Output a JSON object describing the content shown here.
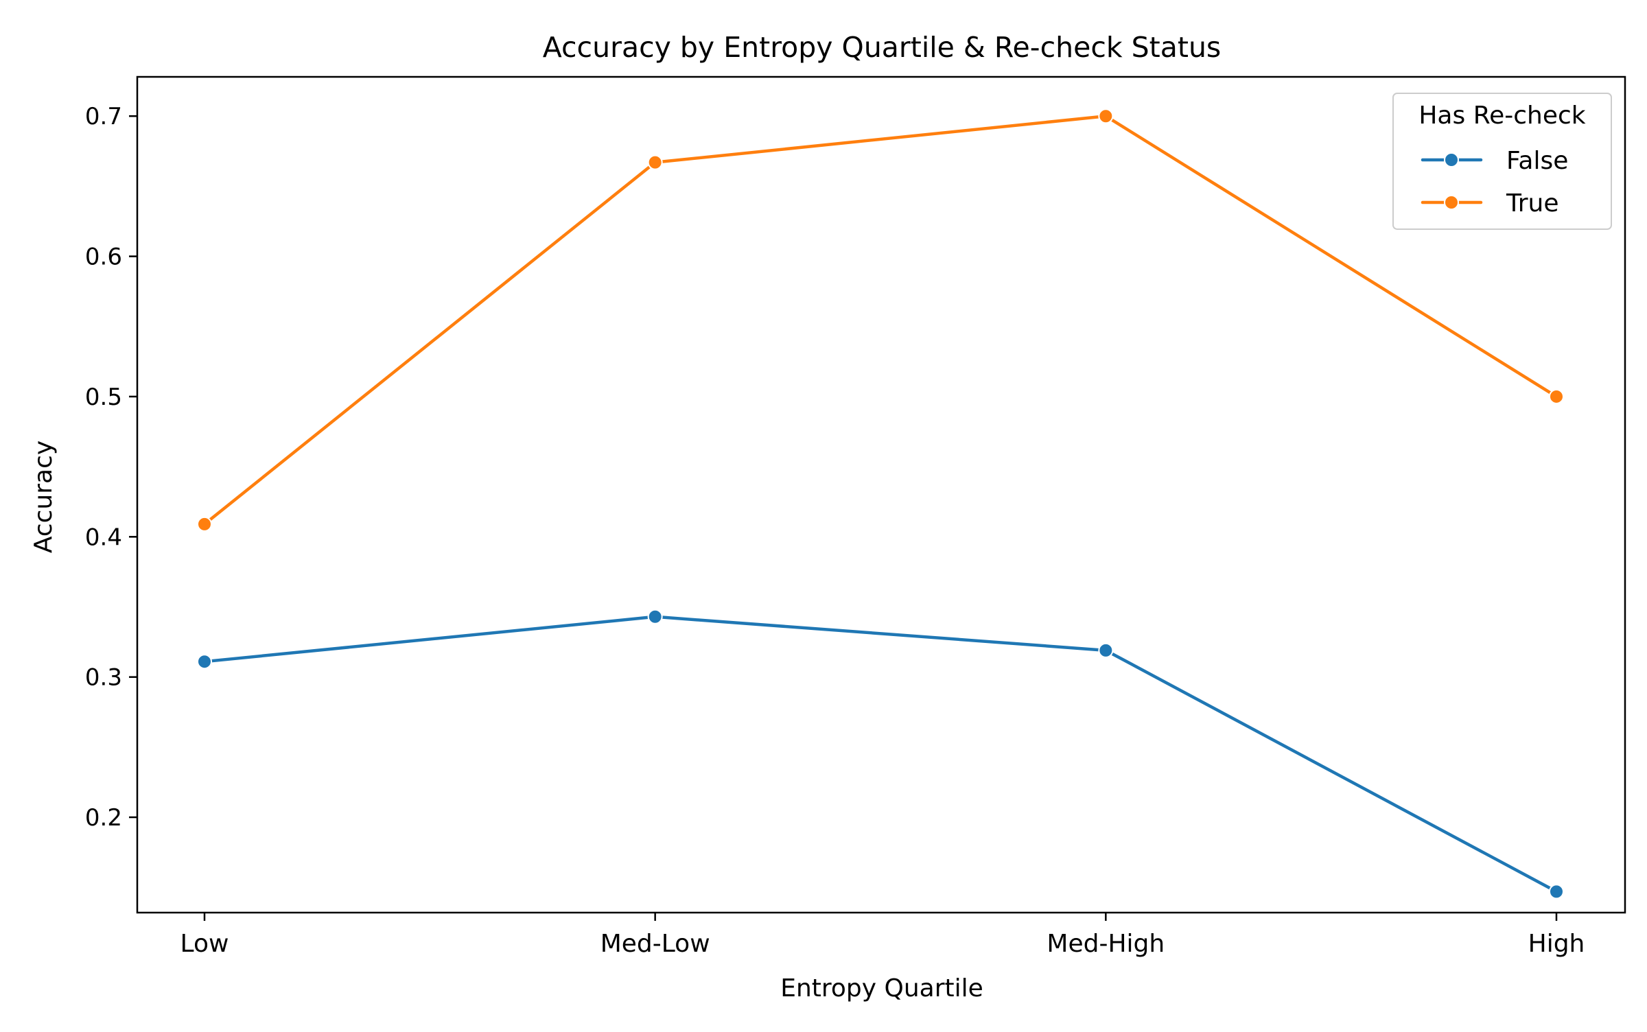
{
  "chart_data": {
    "type": "line",
    "title": "Accuracy by Entropy Quartile & Re-check Status",
    "xlabel": "Entropy Quartile",
    "ylabel": "Accuracy",
    "categories": [
      "Low",
      "Med-Low",
      "Med-High",
      "High"
    ],
    "yticks": [
      "0.2",
      "0.3",
      "0.4",
      "0.5",
      "0.6",
      "0.7"
    ],
    "ylim": [
      0.132,
      0.728
    ],
    "grid": false,
    "legend": {
      "title": "Has Re-check",
      "placement": "top-right"
    },
    "series": [
      {
        "name": "False",
        "color": "#1f77b4",
        "values": [
          0.311,
          0.343,
          0.319,
          0.147
        ]
      },
      {
        "name": "True",
        "color": "#ff7f0e",
        "values": [
          0.409,
          0.667,
          0.7,
          0.5
        ]
      }
    ]
  }
}
